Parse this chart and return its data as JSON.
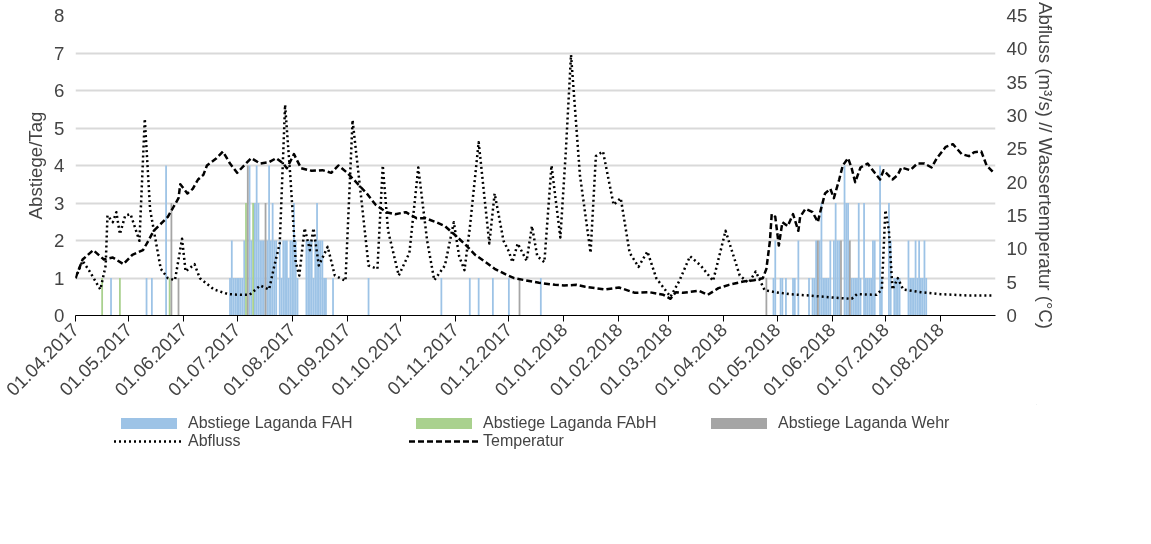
{
  "chart_data": {
    "type": "bar",
    "ylabel": "Abstiege/Tag",
    "y2label": "Abfluss (m³/s) // Wassertemperatur (°C)",
    "xlim": [
      "2017-04-01",
      "2018-09-01"
    ],
    "xticks": [
      {
        "value": "2017-04-01",
        "label": "01.04.2017"
      },
      {
        "value": "2017-05-01",
        "label": "01.05.2017"
      },
      {
        "value": "2017-06-01",
        "label": "01.06.2017"
      },
      {
        "value": "2017-07-01",
        "label": "01.07.2017"
      },
      {
        "value": "2017-08-01",
        "label": "01.08.2017"
      },
      {
        "value": "2017-09-01",
        "label": "01.09.2017"
      },
      {
        "value": "2017-10-01",
        "label": "01.10.2017"
      },
      {
        "value": "2017-11-01",
        "label": "01.11.2017"
      },
      {
        "value": "2017-12-01",
        "label": "01.12.2017"
      },
      {
        "value": "2018-01-01",
        "label": "01.01.2018"
      },
      {
        "value": "2018-02-01",
        "label": "01.02.2018"
      },
      {
        "value": "2018-03-01",
        "label": "01.03.2018"
      },
      {
        "value": "2018-04-01",
        "label": "01.04.2018"
      },
      {
        "value": "2018-05-01",
        "label": "01.05.2018"
      },
      {
        "value": "2018-06-01",
        "label": "01.06.2018"
      },
      {
        "value": "2018-07-01",
        "label": "01.07.2018"
      },
      {
        "value": "2018-08-01",
        "label": "01.08.2018"
      }
    ],
    "ylim": [
      0,
      8
    ],
    "yticks": [
      0,
      1,
      2,
      3,
      4,
      5,
      6,
      7,
      8
    ],
    "y2lim": [
      0,
      45
    ],
    "y2ticks": [
      0,
      5,
      10,
      15,
      20,
      25,
      30,
      35,
      40,
      45
    ],
    "grid": "y",
    "legend": "bottom",
    "series": [
      {
        "name": "Abstiege Laganda FAH",
        "color": "#9dc3e6",
        "x": [
          "2017-04-21",
          "2017-05-11",
          "2017-05-14",
          "2017-05-22",
          "2017-06-27",
          "2017-06-28",
          "2017-06-29",
          "2017-06-30",
          "2017-07-01",
          "2017-07-02",
          "2017-07-03",
          "2017-07-04",
          "2017-07-05",
          "2017-07-08",
          "2017-07-09",
          "2017-07-11",
          "2017-07-12",
          "2017-07-13",
          "2017-07-14",
          "2017-07-15",
          "2017-07-16",
          "2017-07-18",
          "2017-07-19",
          "2017-07-20",
          "2017-07-21",
          "2017-07-22",
          "2017-07-23",
          "2017-07-25",
          "2017-07-26",
          "2017-07-27",
          "2017-07-28",
          "2017-07-29",
          "2017-07-30",
          "2017-07-31",
          "2017-08-01",
          "2017-08-02",
          "2017-08-03",
          "2017-08-04",
          "2017-08-09",
          "2017-08-10",
          "2017-08-11",
          "2017-08-12",
          "2017-08-13",
          "2017-08-14",
          "2017-08-15",
          "2017-08-16",
          "2017-08-17",
          "2017-08-18",
          "2017-08-19",
          "2017-08-20",
          "2017-08-24",
          "2017-09-13",
          "2017-10-24",
          "2017-11-09",
          "2017-11-14",
          "2017-11-22",
          "2017-12-01",
          "2017-12-19",
          "2018-04-29",
          "2018-04-30",
          "2018-05-03",
          "2018-05-04",
          "2018-05-06",
          "2018-05-10",
          "2018-05-11",
          "2018-05-13",
          "2018-05-19",
          "2018-05-21",
          "2018-05-22",
          "2018-05-23",
          "2018-05-25",
          "2018-05-26",
          "2018-05-27",
          "2018-05-28",
          "2018-05-29",
          "2018-05-30",
          "2018-05-31",
          "2018-06-02",
          "2018-06-03",
          "2018-06-04",
          "2018-06-05",
          "2018-06-08",
          "2018-06-09",
          "2018-06-10",
          "2018-06-12",
          "2018-06-13",
          "2018-06-14",
          "2018-06-15",
          "2018-06-16",
          "2018-06-17",
          "2018-06-19",
          "2018-06-20",
          "2018-06-21",
          "2018-06-22",
          "2018-06-23",
          "2018-06-24",
          "2018-06-25",
          "2018-06-28",
          "2018-06-29",
          "2018-07-03",
          "2018-07-04",
          "2018-07-06",
          "2018-07-07",
          "2018-07-08",
          "2018-07-09",
          "2018-07-14",
          "2018-07-15",
          "2018-07-16",
          "2018-07-17",
          "2018-07-18",
          "2018-07-19",
          "2018-07-20",
          "2018-07-21",
          "2018-07-22",
          "2018-07-23",
          "2018-07-24"
        ],
        "values": [
          1,
          1,
          1,
          4,
          1,
          2,
          1,
          1,
          1,
          1,
          1,
          1,
          2,
          4,
          2,
          3,
          4,
          3,
          2,
          2,
          2,
          2,
          4,
          2,
          3,
          2,
          2,
          2,
          1,
          2,
          2,
          2,
          1,
          2,
          2,
          3,
          2,
          1,
          2,
          2,
          2,
          2,
          1,
          2,
          3,
          2,
          2,
          2,
          1,
          1,
          1,
          1,
          1,
          1,
          1,
          1,
          1,
          1,
          1,
          2,
          1,
          1,
          1,
          1,
          1,
          2,
          1,
          1,
          1,
          2,
          2,
          3,
          1,
          1,
          1,
          1,
          2,
          2,
          3,
          2,
          2,
          4,
          3,
          3,
          1,
          1,
          1,
          1,
          3,
          1,
          3,
          1,
          1,
          1,
          1,
          2,
          2,
          4,
          1,
          3,
          2,
          1,
          1,
          1,
          1,
          2,
          1,
          1,
          1,
          2,
          1,
          2,
          1,
          1,
          2,
          1
        ]
      },
      {
        "name": "Abstiege Laganda FAbH",
        "color": "#a9d18e",
        "x": [
          "2017-04-16",
          "2017-04-26",
          "2017-05-24",
          "2017-07-06",
          "2017-07-10"
        ],
        "values": [
          1,
          1,
          1,
          3,
          3
        ]
      },
      {
        "name": "Abstiege Laganda Wehr",
        "color": "#a5a5a5",
        "x": [
          "2017-05-25",
          "2017-05-29",
          "2017-07-07",
          "2017-07-17",
          "2017-12-07",
          "2018-04-25",
          "2018-05-24",
          "2018-06-06",
          "2018-06-11"
        ],
        "values": [
          3,
          1,
          4,
          3,
          1,
          1,
          2,
          2,
          2
        ]
      },
      {
        "name": "Abfluss",
        "type": "line",
        "axis": "y2",
        "color": "#000000",
        "line_style": "dotted",
        "x": [
          "2017-04-01",
          "2017-04-05",
          "2017-04-09",
          "2017-04-15",
          "2017-04-18",
          "2017-04-19",
          "2017-04-22",
          "2017-04-24",
          "2017-04-26",
          "2017-04-29",
          "2017-05-02",
          "2017-05-07",
          "2017-05-10",
          "2017-05-13",
          "2017-05-19",
          "2017-05-23",
          "2017-05-27",
          "2017-05-31",
          "2017-06-02",
          "2017-06-07",
          "2017-06-10",
          "2017-06-18",
          "2017-06-26",
          "2017-07-03",
          "2017-07-08",
          "2017-07-14",
          "2017-07-19",
          "2017-07-22",
          "2017-07-25",
          "2017-07-28",
          "2017-07-31",
          "2017-08-03",
          "2017-08-05",
          "2017-08-08",
          "2017-08-11",
          "2017-08-13",
          "2017-08-16",
          "2017-08-21",
          "2017-08-25",
          "2017-08-31",
          "2017-09-04",
          "2017-09-09",
          "2017-09-13",
          "2017-09-18",
          "2017-09-21",
          "2017-09-24",
          "2017-09-30",
          "2017-10-06",
          "2017-10-11",
          "2017-10-16",
          "2017-10-20",
          "2017-10-26",
          "2017-10-31",
          "2017-11-03",
          "2017-11-06",
          "2017-11-09",
          "2017-11-14",
          "2017-11-20",
          "2017-11-23",
          "2017-11-28",
          "2017-12-01",
          "2017-12-03",
          "2017-12-06",
          "2017-12-11",
          "2017-12-14",
          "2017-12-17",
          "2017-12-21",
          "2017-12-25",
          "2017-12-30",
          "2018-01-02",
          "2018-01-05",
          "2018-01-10",
          "2018-01-16",
          "2018-01-19",
          "2018-01-23",
          "2018-01-29",
          "2018-02-02",
          "2018-02-07",
          "2018-02-12",
          "2018-02-17",
          "2018-02-22",
          "2018-03-02",
          "2018-03-07",
          "2018-03-13",
          "2018-03-19",
          "2018-03-26",
          "2018-04-02",
          "2018-04-10",
          "2018-04-15",
          "2018-04-19",
          "2018-04-24",
          "2018-04-30",
          "2018-05-08",
          "2018-05-19",
          "2018-06-01",
          "2018-06-12",
          "2018-06-15",
          "2018-06-26",
          "2018-06-29",
          "2018-07-01",
          "2018-07-03",
          "2018-07-05",
          "2018-07-08",
          "2018-07-11",
          "2018-07-21",
          "2018-08-01",
          "2018-08-16",
          "2018-08-31"
        ],
        "values": [
          5.6,
          8.2,
          6.6,
          3.9,
          7.5,
          15,
          14,
          15.5,
          12.2,
          15,
          15.2,
          11.2,
          29.5,
          15.9,
          7,
          5.6,
          5.3,
          11.5,
          6.6,
          7.7,
          5.6,
          3.9,
          3.2,
          3.1,
          3.1,
          4.5,
          3.9,
          7.5,
          10.8,
          31.6,
          20.7,
          8,
          6,
          13.1,
          9.8,
          13.1,
          7.5,
          10.3,
          6,
          5.2,
          29.3,
          17.3,
          7.5,
          7,
          22.5,
          12.7,
          6,
          9.4,
          22.2,
          11.2,
          5.3,
          7.5,
          14,
          8.9,
          6.8,
          13.1,
          26,
          10.8,
          18.3,
          11.2,
          9.6,
          8,
          10.8,
          8.2,
          13.4,
          8.9,
          8,
          22.5,
          11.7,
          24.3,
          39.1,
          21.1,
          9.4,
          23.9,
          24.6,
          16.6,
          17.6,
          9.4,
          7.3,
          9.6,
          5.6,
          2.8,
          5.2,
          8.9,
          7.5,
          5.2,
          12.7,
          6,
          4.9,
          6.6,
          3.8,
          3.5,
          3.2,
          3,
          2.7,
          2.5,
          3.2,
          3.1,
          3.9,
          15.8,
          12.7,
          3.9,
          5.6,
          3.9,
          3.5,
          3.2,
          3,
          3
        ]
      },
      {
        "name": "Temperatur",
        "type": "line",
        "axis": "y2",
        "color": "#000000",
        "line_style": "dashed",
        "x": [
          "2017-04-01",
          "2017-04-05",
          "2017-04-11",
          "2017-04-17",
          "2017-04-22",
          "2017-04-28",
          "2017-05-03",
          "2017-05-09",
          "2017-05-12",
          "2017-05-15",
          "2017-05-20",
          "2017-05-23",
          "2017-05-26",
          "2017-05-29",
          "2017-05-30",
          "2017-06-03",
          "2017-06-06",
          "2017-06-09",
          "2017-06-12",
          "2017-06-14",
          "2017-06-19",
          "2017-06-23",
          "2017-06-27",
          "2017-07-01",
          "2017-07-06",
          "2017-07-09",
          "2017-07-14",
          "2017-07-19",
          "2017-07-23",
          "2017-07-27",
          "2017-07-29",
          "2017-08-02",
          "2017-08-06",
          "2017-08-12",
          "2017-08-18",
          "2017-08-23",
          "2017-08-27",
          "2017-09-01",
          "2017-09-06",
          "2017-09-12",
          "2017-09-17",
          "2017-09-23",
          "2017-09-28",
          "2017-10-04",
          "2017-10-10",
          "2017-10-15",
          "2017-10-21",
          "2017-10-26",
          "2017-11-01",
          "2017-11-07",
          "2017-11-12",
          "2017-11-18",
          "2017-11-23",
          "2017-11-29",
          "2017-12-04",
          "2017-12-10",
          "2017-12-18",
          "2017-12-27",
          "2018-01-01",
          "2018-01-08",
          "2018-01-13",
          "2018-01-24",
          "2018-02-01",
          "2018-02-10",
          "2018-02-18",
          "2018-02-26",
          "2018-03-02",
          "2018-03-05",
          "2018-03-09",
          "2018-03-18",
          "2018-03-23",
          "2018-03-29",
          "2018-04-04",
          "2018-04-12",
          "2018-04-18",
          "2018-04-23",
          "2018-04-25",
          "2018-04-27",
          "2018-04-28",
          "2018-04-30",
          "2018-05-02",
          "2018-05-04",
          "2018-05-07",
          "2018-05-10",
          "2018-05-13",
          "2018-05-14",
          "2018-05-17",
          "2018-05-21",
          "2018-05-24",
          "2018-05-25",
          "2018-05-28",
          "2018-05-31",
          "2018-06-02",
          "2018-06-05",
          "2018-06-07",
          "2018-06-10",
          "2018-06-12",
          "2018-06-14",
          "2018-06-17",
          "2018-06-21",
          "2018-06-25",
          "2018-06-28",
          "2018-06-30",
          "2018-07-05",
          "2018-07-08",
          "2018-07-10",
          "2018-07-15",
          "2018-07-19",
          "2018-07-23",
          "2018-07-27",
          "2018-07-30",
          "2018-08-04",
          "2018-08-08",
          "2018-08-13",
          "2018-08-17",
          "2018-08-20",
          "2018-08-24",
          "2018-08-27",
          "2018-08-31"
        ],
        "values": [
          5.6,
          8.4,
          9.8,
          8.4,
          8.7,
          7.7,
          9.1,
          9.8,
          11.2,
          12.7,
          14,
          14.8,
          16.2,
          17.6,
          19.7,
          18.3,
          19,
          20.4,
          21.1,
          22.5,
          23.5,
          24.6,
          22.8,
          21.4,
          22.8,
          23.6,
          22.8,
          23,
          23.6,
          22.8,
          22.1,
          24.2,
          22.1,
          21.7,
          21.8,
          21.4,
          22.5,
          21.4,
          20,
          18.3,
          16.6,
          15.5,
          15.2,
          15.5,
          14.6,
          14.6,
          14,
          13.4,
          12,
          10.5,
          9.1,
          8,
          7,
          6.2,
          5.6,
          5.3,
          4.9,
          4.6,
          4.5,
          4.6,
          4.3,
          3.9,
          4.2,
          3.4,
          3.5,
          3.1,
          2.5,
          3.5,
          3.4,
          3.7,
          3.1,
          4.1,
          4.6,
          5.1,
          5.3,
          5.6,
          7,
          11.2,
          15.2,
          14.8,
          10.5,
          14,
          13.4,
          15.2,
          12.7,
          14.8,
          16,
          15.5,
          14,
          15.2,
          18.3,
          19,
          17.6,
          20.4,
          22.5,
          23.6,
          22.1,
          20,
          22.2,
          22.8,
          21.4,
          20.4,
          21.8,
          20.4,
          21.1,
          22.2,
          21.8,
          22.8,
          22.8,
          22.2,
          23.6,
          25.3,
          25.7,
          24.2,
          23.9,
          24.5,
          24.6,
          22.5,
          21.4
        ]
      }
    ]
  }
}
